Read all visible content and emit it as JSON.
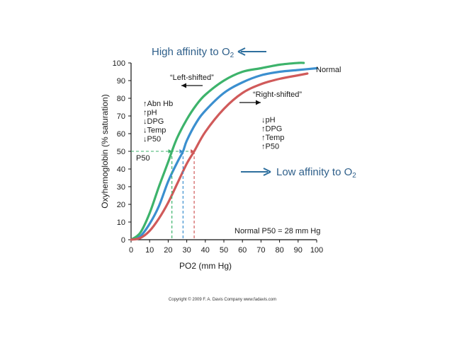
{
  "chart_data": {
    "type": "line",
    "xlabel": "PO2 (mm Hg)",
    "ylabel": "Oxyhemoglobin (% saturation)",
    "xlim": [
      0,
      100
    ],
    "ylim": [
      0,
      100
    ],
    "xticks": [
      0,
      10,
      20,
      30,
      40,
      50,
      60,
      70,
      80,
      90,
      100
    ],
    "yticks": [
      0,
      10,
      20,
      30,
      40,
      50,
      60,
      70,
      80,
      90,
      100
    ],
    "series": [
      {
        "name": "Normal",
        "color": "#3b8fcf",
        "p50": 28,
        "x": [
          0,
          5,
          10,
          15,
          20,
          25,
          28,
          30,
          35,
          40,
          50,
          60,
          70,
          80,
          90,
          100
        ],
        "y": [
          0,
          2,
          9,
          19,
          33,
          44,
          50,
          56,
          66,
          73,
          83,
          89,
          93,
          95,
          96,
          97
        ]
      },
      {
        "name": "“Left-shifted”",
        "color": "#3db36b",
        "p50": 22,
        "x": [
          0,
          5,
          10,
          15,
          20,
          22,
          25,
          30,
          35,
          40,
          50,
          60,
          70,
          80,
          90,
          93
        ],
        "y": [
          0,
          4,
          15,
          30,
          44,
          50,
          58,
          68,
          76,
          82,
          90,
          95,
          97,
          99,
          100,
          100
        ]
      },
      {
        "name": "“Right-shifted”",
        "color": "#d05a5a",
        "p50": 34,
        "x": [
          0,
          5,
          10,
          15,
          20,
          25,
          30,
          34,
          40,
          50,
          60,
          70,
          80,
          90,
          95
        ],
        "y": [
          0,
          1,
          5,
          12,
          21,
          32,
          43,
          50,
          61,
          74,
          83,
          88,
          91,
          93,
          94
        ]
      }
    ]
  },
  "labels": {
    "high_affinity": "High affinity to O",
    "high_affinity_sub": "2",
    "low_affinity": "Low affinity to O",
    "low_affinity_sub": "2",
    "normal": "Normal",
    "left_shifted": "“Left-shifted”",
    "right_shifted": "“Right-shifted”",
    "left_factors": [
      "↑Abn Hb",
      "↑pH",
      "↓DPG",
      "↓Temp",
      "↓P50"
    ],
    "right_factors": [
      "↓pH",
      "↑DPG",
      "↑Temp",
      "↑P50"
    ],
    "p50_label": "P50",
    "normal_p50": "Normal P50 = 28 mm Hg",
    "copyright": "Copyright © 2009   F. A. Davis Company     www.fadavis.com"
  }
}
